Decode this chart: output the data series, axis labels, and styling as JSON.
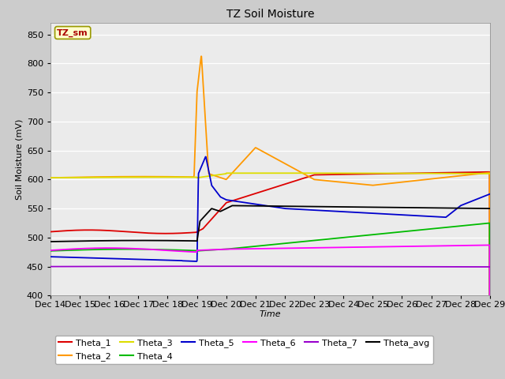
{
  "title": "TZ Soil Moisture",
  "xlabel": "Time",
  "ylabel": "Soil Moisture (mV)",
  "ylim": [
    400,
    870
  ],
  "yticks": [
    400,
    450,
    500,
    550,
    600,
    650,
    700,
    750,
    800,
    850
  ],
  "legend_label": "TZ_sm",
  "series_colors": {
    "Theta_1": "#dd0000",
    "Theta_2": "#ff9900",
    "Theta_3": "#dddd00",
    "Theta_4": "#00bb00",
    "Theta_5": "#0000cc",
    "Theta_6": "#ff00ff",
    "Theta_7": "#9900cc",
    "Theta_avg": "#000000"
  },
  "figsize": [
    6.4,
    4.8
  ],
  "dpi": 100
}
